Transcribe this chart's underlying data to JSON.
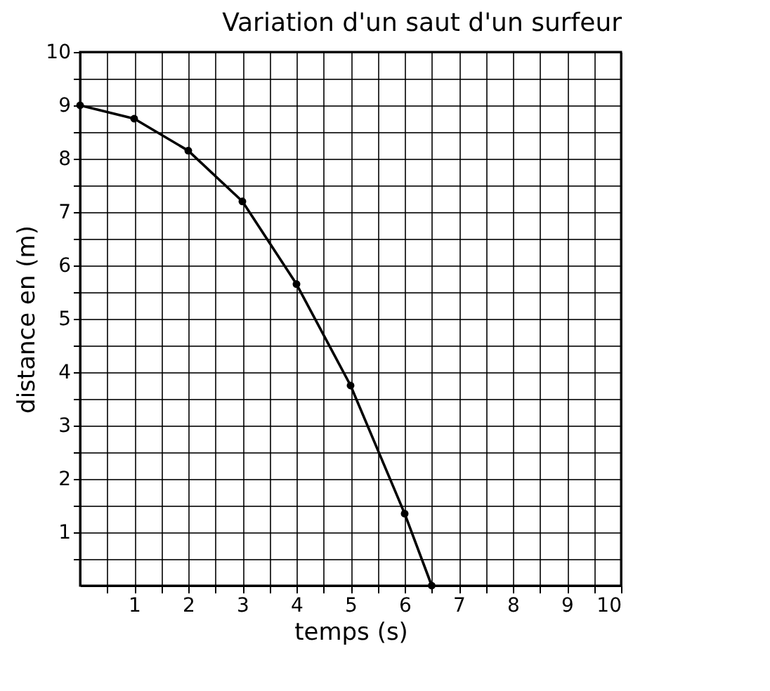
{
  "chart_data": {
    "type": "line",
    "title": "Variation d'un saut d'un surfeur",
    "xlabel": "temps (s)",
    "ylabel": "distance en (m)",
    "x": [
      0,
      1,
      2,
      3,
      4,
      5,
      6,
      6.5
    ],
    "series": [
      {
        "color": "#000000",
        "values": [
          9,
          8.75,
          8.15,
          7.2,
          5.65,
          3.75,
          1.35,
          0
        ]
      }
    ],
    "xlim": [
      0,
      10
    ],
    "ylim": [
      0,
      10
    ],
    "xticks": [
      {
        "value": 0.5,
        "label": null
      },
      1,
      {
        "value": 1.5,
        "label": null
      },
      2,
      {
        "value": 2.5,
        "label": null
      },
      3,
      {
        "value": 3.5,
        "label": null
      },
      4,
      {
        "value": 4.5,
        "label": null
      },
      5,
      {
        "value": 5.5,
        "label": null
      },
      6,
      {
        "value": 6.5,
        "label": null
      },
      7,
      {
        "value": 7.5,
        "label": null
      },
      8,
      {
        "value": 8.5,
        "label": null
      },
      9,
      {
        "value": 9.5,
        "label": null
      },
      10
    ],
    "yticks": [
      {
        "value": 0.5,
        "label": null
      },
      1,
      {
        "value": 1.5,
        "label": null
      },
      2,
      {
        "value": 2.5,
        "label": null
      },
      3,
      {
        "value": 3.5,
        "label": null
      },
      4,
      {
        "value": 4.5,
        "label": null
      },
      5,
      {
        "value": 5.5,
        "label": null
      },
      6,
      {
        "value": 6.5,
        "label": null
      },
      7,
      {
        "value": 7.5,
        "label": null
      },
      8,
      {
        "value": 8.5,
        "label": null
      },
      9,
      {
        "value": 9.5,
        "label": null
      },
      10
    ],
    "grid": true,
    "marker": "circle",
    "line_style": "solid"
  }
}
